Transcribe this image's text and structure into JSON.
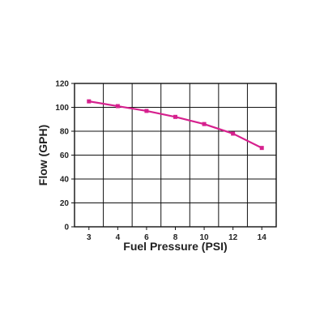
{
  "chart_data": {
    "type": "line",
    "title": "",
    "xlabel": "Fuel Pressure (PSI)",
    "ylabel": "Flow (GPH)",
    "categories": [
      "3",
      "4",
      "6",
      "8",
      "10",
      "12",
      "14"
    ],
    "series": [
      {
        "values": [
          105,
          101,
          97,
          92,
          86,
          78,
          66
        ],
        "color": "#d6218e"
      }
    ],
    "ylim": [
      0,
      120
    ],
    "yticks": [
      "0",
      "20",
      "40",
      "60",
      "80",
      "100",
      "120"
    ],
    "grid": true,
    "colors": {
      "line": "#d6218e",
      "grid": "#111111",
      "text": "#222222"
    }
  }
}
